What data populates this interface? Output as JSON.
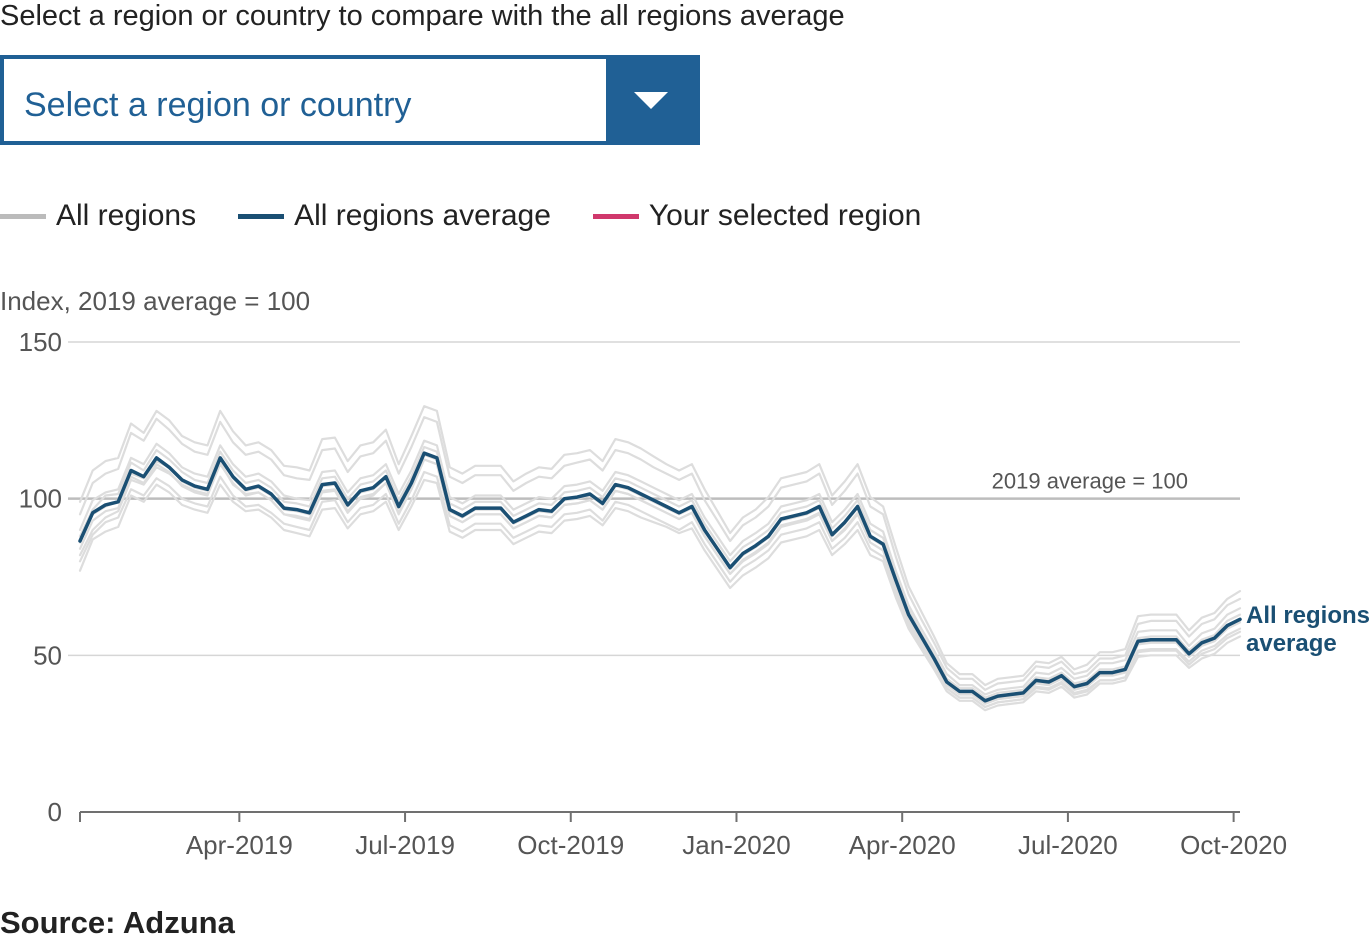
{
  "prompt": "Select a region or country to compare with the all regions average",
  "selector": {
    "placeholder": "Select a region or country",
    "button_icon": "chevron-down-icon",
    "accent_color": "#206095"
  },
  "legend": [
    {
      "label": "All regions",
      "color": "#bbbbbb"
    },
    {
      "label": "All regions average",
      "color": "#1a4f73"
    },
    {
      "label": "Your selected region",
      "color": "#d0386c"
    }
  ],
  "source": "Source: Adzuna",
  "chart_data": {
    "type": "line",
    "ylabel": "Index, 2019 average = 100",
    "ylim": [
      0,
      150
    ],
    "yticks": [
      0,
      50,
      100,
      150
    ],
    "xticks": [
      {
        "label": "Apr-2019",
        "week": 12.5
      },
      {
        "label": "Jul-2019",
        "week": 25.5
      },
      {
        "label": "Oct-2019",
        "week": 38.5
      },
      {
        "label": "Jan-2020",
        "week": 51.5
      },
      {
        "label": "Apr-2020",
        "week": 64.5
      },
      {
        "label": "Jul-2020",
        "week": 77.5
      },
      {
        "label": "Oct-2020",
        "week": 90.5
      }
    ],
    "reference_line": {
      "value": 100,
      "label": "2019 average = 100"
    },
    "end_label": [
      "All regions",
      "average"
    ],
    "grid": true,
    "series": [
      {
        "name": "All regions average",
        "color": "#1a4f73",
        "values": [
          86.5,
          95.5,
          98.0,
          99.0,
          109.0,
          107.0,
          113.0,
          110.0,
          106.0,
          104.0,
          103.0,
          113.0,
          107.0,
          103.0,
          104.0,
          101.5,
          97.0,
          96.5,
          95.5,
          104.5,
          105.0,
          98.0,
          102.5,
          103.5,
          107.0,
          97.5,
          105.0,
          114.5,
          113.0,
          96.5,
          94.5,
          97.0,
          97.0,
          97.0,
          92.5,
          94.5,
          96.5,
          96.0,
          100.0,
          100.5,
          101.5,
          98.5,
          104.5,
          103.5,
          101.5,
          99.5,
          97.5,
          95.5,
          97.5,
          90.0,
          84.0,
          78.0,
          82.5,
          85.0,
          88.0,
          93.5,
          94.5,
          95.5,
          97.5,
          88.5,
          92.5,
          97.5,
          88.0,
          85.5,
          74.0,
          63.0,
          56.0,
          49.0,
          41.5,
          38.5,
          38.5,
          35.5,
          37.0,
          37.5,
          38.0,
          42.0,
          41.5,
          43.5,
          40.0,
          41.0,
          44.5,
          44.5,
          45.5,
          54.5,
          55.0,
          55.0,
          55.0,
          50.5,
          54.0,
          55.5,
          59.5,
          61.5
        ]
      },
      {
        "name": "All regions",
        "color": "#dddddd",
        "values": [
          82.0,
          90.0,
          94.0,
          96.0,
          106.0,
          104.5,
          110.0,
          108.0,
          104.5,
          102.5,
          101.5,
          111.5,
          104.5,
          101.5,
          102.0,
          99.5,
          95.0,
          94.0,
          93.0,
          102.0,
          102.5,
          95.5,
          100.0,
          101.0,
          105.0,
          95.0,
          103.0,
          112.5,
          111.0,
          94.5,
          92.5,
          95.0,
          95.0,
          95.0,
          90.5,
          92.5,
          94.5,
          94.0,
          98.0,
          98.5,
          99.5,
          96.5,
          102.5,
          101.5,
          99.5,
          97.5,
          95.5,
          93.5,
          95.5,
          88.0,
          82.0,
          76.0,
          80.0,
          82.5,
          85.5,
          91.0,
          92.0,
          93.0,
          95.0,
          86.5,
          90.0,
          95.0,
          86.0,
          83.5,
          71.5,
          60.5,
          53.5,
          46.5,
          39.5,
          36.5,
          36.5,
          33.5,
          35.0,
          35.5,
          36.0,
          40.0,
          39.5,
          41.5,
          38.0,
          39.0,
          42.0,
          42.0,
          43.0,
          51.5,
          52.0,
          52.0,
          52.0,
          48.0,
          51.5,
          53.0,
          56.5,
          58.5
        ]
      },
      {
        "name": "All regions",
        "color": "#dddddd",
        "values": [
          90.0,
          99.5,
          102.0,
          103.0,
          113.0,
          111.0,
          117.5,
          114.5,
          110.0,
          108.0,
          107.0,
          117.0,
          111.0,
          107.0,
          108.0,
          105.5,
          101.0,
          100.0,
          99.5,
          108.5,
          109.0,
          102.0,
          106.5,
          107.5,
          111.0,
          101.5,
          109.0,
          118.5,
          117.0,
          100.5,
          98.5,
          101.0,
          101.0,
          101.0,
          96.5,
          98.5,
          100.5,
          100.0,
          104.0,
          104.5,
          105.5,
          102.5,
          108.5,
          107.5,
          105.5,
          103.5,
          101.5,
          99.5,
          101.5,
          94.0,
          88.0,
          82.0,
          86.5,
          89.0,
          92.0,
          97.5,
          98.5,
          99.5,
          101.5,
          92.5,
          96.5,
          101.5,
          92.0,
          89.5,
          77.0,
          66.0,
          58.5,
          51.5,
          44.0,
          40.5,
          40.5,
          37.5,
          39.0,
          39.5,
          40.0,
          44.5,
          44.0,
          46.0,
          42.5,
          43.5,
          47.5,
          47.5,
          48.5,
          57.5,
          58.0,
          58.0,
          58.0,
          53.0,
          57.0,
          58.5,
          63.0,
          65.0
        ]
      },
      {
        "name": "All regions",
        "color": "#dddddd",
        "values": [
          77.0,
          87.0,
          89.5,
          91.0,
          101.0,
          99.0,
          104.5,
          102.0,
          98.0,
          96.5,
          95.5,
          104.5,
          99.0,
          96.0,
          96.5,
          94.0,
          90.0,
          89.0,
          88.0,
          96.5,
          97.0,
          90.5,
          95.0,
          96.0,
          99.0,
          90.0,
          97.5,
          106.0,
          105.0,
          89.5,
          87.5,
          90.0,
          90.0,
          90.0,
          85.5,
          87.5,
          89.5,
          89.0,
          93.0,
          93.5,
          94.5,
          91.5,
          97.0,
          96.0,
          94.0,
          92.5,
          91.0,
          89.0,
          90.5,
          83.5,
          77.5,
          71.5,
          75.5,
          78.0,
          81.0,
          86.0,
          87.0,
          88.0,
          90.0,
          82.0,
          85.5,
          90.0,
          82.0,
          80.0,
          68.5,
          58.5,
          52.0,
          45.5,
          38.5,
          35.5,
          35.5,
          32.5,
          34.0,
          34.5,
          35.0,
          38.5,
          38.0,
          40.0,
          36.5,
          37.5,
          41.0,
          41.0,
          42.0,
          49.5,
          50.0,
          50.0,
          50.0,
          46.0,
          49.0,
          50.5,
          54.0,
          56.0
        ]
      },
      {
        "name": "All regions",
        "color": "#dddddd",
        "values": [
          95.0,
          105.0,
          108.0,
          109.5,
          121.0,
          118.5,
          125.5,
          122.0,
          117.5,
          115.0,
          114.0,
          124.5,
          118.0,
          114.0,
          115.0,
          112.5,
          107.5,
          106.5,
          106.0,
          115.5,
          116.0,
          108.5,
          113.5,
          114.5,
          118.5,
          108.0,
          116.5,
          126.0,
          124.5,
          107.0,
          105.0,
          107.5,
          107.5,
          107.5,
          102.5,
          105.0,
          107.0,
          106.5,
          110.5,
          111.5,
          112.5,
          109.0,
          115.5,
          114.5,
          112.5,
          110.0,
          108.0,
          106.0,
          108.0,
          99.5,
          93.0,
          86.5,
          91.5,
          94.0,
          97.5,
          103.5,
          104.5,
          105.5,
          108.0,
          98.0,
          102.5,
          108.0,
          97.5,
          95.0,
          81.5,
          69.5,
          61.5,
          54.0,
          46.0,
          42.5,
          42.5,
          39.0,
          41.0,
          41.5,
          42.0,
          46.5,
          46.0,
          48.0,
          44.0,
          45.0,
          49.0,
          49.0,
          50.0,
          60.0,
          61.0,
          61.0,
          61.0,
          56.0,
          60.0,
          61.5,
          66.0,
          68.0
        ]
      },
      {
        "name": "All regions",
        "color": "#dddddd",
        "values": [
          80.0,
          88.5,
          92.5,
          94.0,
          103.0,
          101.0,
          106.5,
          104.0,
          100.0,
          98.5,
          97.5,
          107.0,
          101.0,
          97.5,
          98.0,
          95.5,
          92.0,
          91.0,
          90.0,
          99.0,
          99.5,
          92.5,
          97.0,
          98.0,
          101.5,
          92.0,
          99.5,
          108.5,
          107.0,
          91.5,
          89.5,
          92.0,
          92.0,
          92.0,
          87.5,
          89.5,
          91.5,
          91.0,
          95.0,
          95.5,
          96.5,
          93.0,
          99.0,
          98.0,
          96.0,
          94.0,
          92.0,
          90.0,
          92.5,
          85.5,
          79.5,
          73.5,
          78.0,
          80.5,
          83.5,
          88.5,
          89.5,
          90.5,
          92.5,
          84.0,
          87.5,
          92.5,
          84.0,
          81.5,
          70.0,
          59.5,
          53.0,
          46.5,
          39.5,
          36.5,
          36.5,
          33.5,
          35.0,
          35.5,
          36.0,
          39.5,
          39.0,
          41.0,
          37.5,
          38.5,
          42.0,
          42.0,
          43.0,
          51.0,
          51.5,
          51.5,
          51.5,
          47.0,
          50.5,
          52.0,
          55.5,
          57.5
        ]
      },
      {
        "name": "All regions",
        "color": "#dddddd",
        "values": [
          88.0,
          96.5,
          101.0,
          101.5,
          111.5,
          109.0,
          115.5,
          112.5,
          108.5,
          106.0,
          105.0,
          115.0,
          109.0,
          105.0,
          106.0,
          103.5,
          99.0,
          98.5,
          97.5,
          106.5,
          107.0,
          100.0,
          104.5,
          105.5,
          109.0,
          99.5,
          107.0,
          116.5,
          115.0,
          98.5,
          96.5,
          99.0,
          99.0,
          99.0,
          94.5,
          96.5,
          98.5,
          98.0,
          102.0,
          102.5,
          103.5,
          100.5,
          106.5,
          105.5,
          103.5,
          101.5,
          99.5,
          97.5,
          99.5,
          92.0,
          86.0,
          80.0,
          84.5,
          87.0,
          90.0,
          95.5,
          96.5,
          97.5,
          99.5,
          90.5,
          94.5,
          99.5,
          90.0,
          87.5,
          75.5,
          64.5,
          57.0,
          50.0,
          42.5,
          39.5,
          39.5,
          36.5,
          38.0,
          38.5,
          39.0,
          43.0,
          42.5,
          44.5,
          41.0,
          42.0,
          45.5,
          45.5,
          46.5,
          55.5,
          56.0,
          56.0,
          56.0,
          51.5,
          55.0,
          56.5,
          61.0,
          63.0
        ]
      },
      {
        "name": "All regions",
        "color": "#dddddd",
        "values": [
          84.0,
          93.0,
          96.0,
          97.0,
          107.0,
          105.0,
          111.0,
          108.5,
          104.0,
          102.0,
          101.0,
          111.0,
          105.0,
          101.0,
          102.0,
          99.5,
          95.0,
          94.5,
          93.5,
          102.5,
          103.0,
          96.0,
          100.5,
          101.5,
          105.0,
          95.5,
          103.0,
          112.5,
          111.0,
          94.5,
          92.5,
          95.0,
          95.0,
          95.0,
          90.5,
          92.5,
          94.5,
          94.0,
          98.0,
          98.5,
          99.5,
          96.5,
          102.5,
          101.5,
          99.5,
          97.5,
          95.5,
          93.5,
          95.5,
          88.0,
          82.0,
          76.0,
          80.5,
          83.0,
          86.0,
          91.5,
          92.5,
          93.5,
          95.5,
          86.5,
          90.5,
          95.5,
          86.0,
          83.5,
          72.5,
          61.5,
          54.5,
          48.0,
          40.5,
          37.5,
          37.5,
          34.5,
          36.0,
          36.5,
          37.0,
          41.0,
          40.5,
          42.5,
          39.0,
          40.0,
          43.5,
          43.5,
          44.5,
          53.5,
          54.0,
          54.0,
          54.0,
          49.5,
          53.0,
          54.5,
          58.5,
          60.5
        ]
      },
      {
        "name": "All regions",
        "color": "#dddddd",
        "values": [
          99.0,
          109.0,
          112.0,
          113.0,
          124.0,
          121.0,
          128.0,
          125.0,
          120.0,
          118.0,
          117.0,
          128.0,
          121.5,
          117.0,
          118.0,
          115.5,
          110.5,
          110.0,
          109.0,
          119.0,
          119.5,
          112.0,
          117.0,
          118.0,
          122.0,
          111.0,
          120.0,
          129.5,
          128.0,
          110.0,
          108.0,
          110.5,
          110.5,
          110.5,
          105.5,
          108.0,
          110.0,
          109.5,
          114.0,
          114.5,
          115.5,
          112.0,
          119.0,
          118.0,
          116.0,
          113.5,
          111.0,
          109.0,
          111.0,
          103.0,
          96.0,
          89.0,
          94.0,
          96.5,
          100.5,
          106.5,
          107.5,
          108.5,
          111.0,
          101.0,
          105.5,
          111.0,
          100.5,
          97.5,
          84.5,
          72.0,
          64.0,
          56.0,
          47.5,
          44.0,
          44.0,
          40.5,
          42.5,
          43.0,
          43.5,
          48.0,
          47.5,
          49.5,
          45.5,
          47.0,
          51.0,
          51.0,
          52.0,
          62.5,
          63.0,
          63.0,
          63.0,
          58.0,
          62.0,
          63.5,
          68.0,
          70.5
        ]
      },
      {
        "name": "All regions",
        "color": "#dddddd",
        "values": [
          86.0,
          95.0,
          97.5,
          99.0,
          108.0,
          106.5,
          112.0,
          110.0,
          105.5,
          103.5,
          102.5,
          112.5,
          106.5,
          102.5,
          103.5,
          101.0,
          96.5,
          96.0,
          95.0,
          104.0,
          104.5,
          97.5,
          102.0,
          103.0,
          106.5,
          97.0,
          104.5,
          114.0,
          112.5,
          96.0,
          94.0,
          96.5,
          96.5,
          96.5,
          92.0,
          94.0,
          96.0,
          95.5,
          99.5,
          100.0,
          101.0,
          98.0,
          104.0,
          103.0,
          101.0,
          99.0,
          97.0,
          95.0,
          97.0,
          89.5,
          83.5,
          77.5,
          82.0,
          84.5,
          87.5,
          93.0,
          94.0,
          95.0,
          97.0,
          88.0,
          92.0,
          97.0,
          87.5,
          85.0,
          73.5,
          62.5,
          55.5,
          48.5,
          41.0,
          38.0,
          38.0,
          35.0,
          36.5,
          37.0,
          37.5,
          41.5,
          41.0,
          43.0,
          39.5,
          40.5,
          44.0,
          44.0,
          45.0,
          54.0,
          54.5,
          54.5,
          54.5,
          50.0,
          53.5,
          55.0,
          59.0,
          61.0
        ]
      }
    ]
  }
}
